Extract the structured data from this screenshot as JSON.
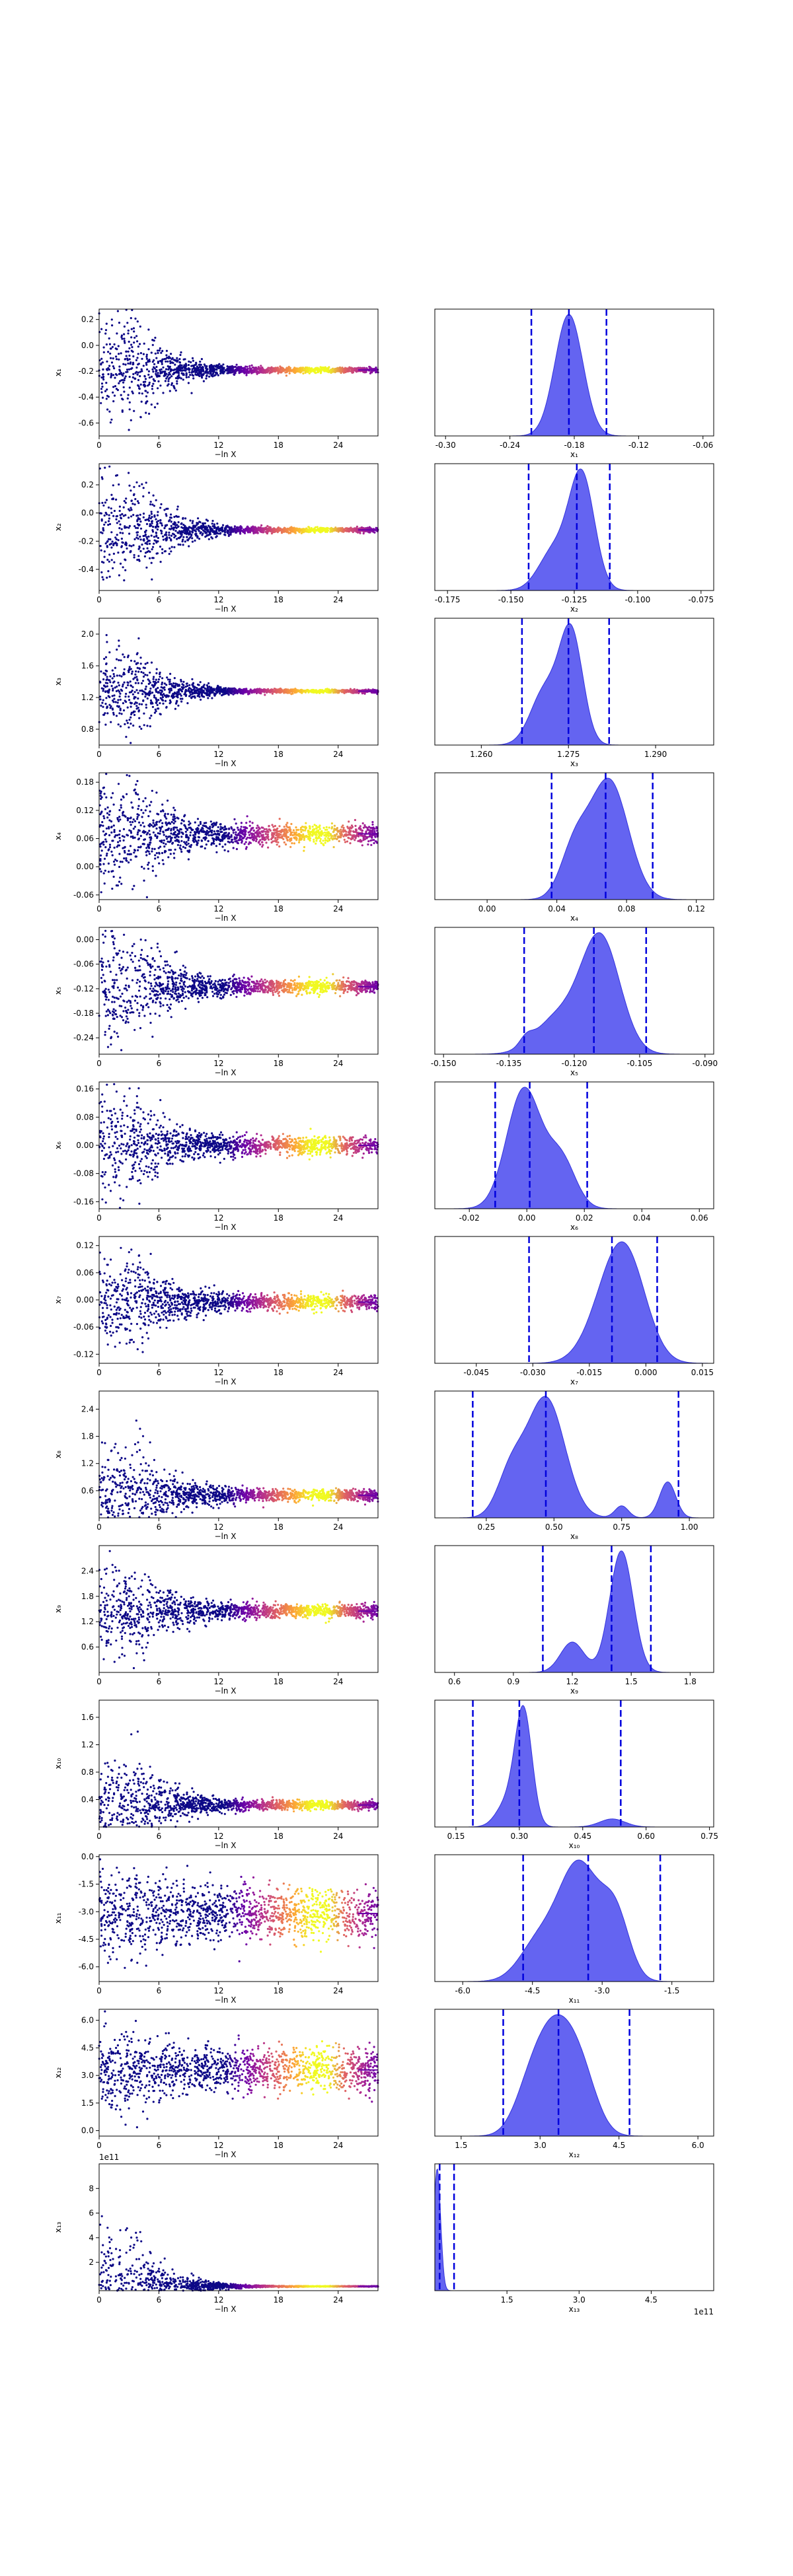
{
  "chart_data": [
    {
      "type": "scatter",
      "param": "x_1",
      "ylabel": "x₁",
      "xlabel": "−ln X",
      "xlim": [
        0,
        28
      ],
      "xticks": [
        "0",
        "6",
        "12",
        "18",
        "24"
      ],
      "ylim": [
        -0.7,
        0.28
      ],
      "yticks": [
        "0.2",
        "0.0",
        "-0.2",
        "-0.4",
        "-0.6"
      ],
      "center": -0.19,
      "init_spread": 0.2,
      "final_spread": 0.01
    },
    {
      "type": "area",
      "param": "x_1",
      "xlabel": "x₁",
      "xlim": [
        -0.31,
        -0.05
      ],
      "xticks": [
        "-0.30",
        "-0.24",
        "-0.18",
        "-0.12",
        "-0.06"
      ],
      "bounds": [
        -0.22,
        -0.15
      ],
      "mean": -0.185,
      "peaks": [
        {
          "mu": -0.185,
          "sigma": 0.013,
          "amp": 1.0
        }
      ]
    },
    {
      "type": "scatter",
      "param": "x_2",
      "ylabel": "x₂",
      "xlabel": "−ln X",
      "xlim": [
        0,
        28
      ],
      "xticks": [
        "0",
        "6",
        "12",
        "18",
        "24"
      ],
      "ylim": [
        -0.55,
        0.35
      ],
      "yticks": [
        "0.2",
        "0.0",
        "-0.2",
        "-0.4"
      ],
      "center": -0.12,
      "init_spread": 0.2,
      "final_spread": 0.008
    },
    {
      "type": "area",
      "param": "x_2",
      "xlabel": "x₂",
      "xlim": [
        -0.18,
        -0.07
      ],
      "xticks": [
        "-0.175",
        "-0.150",
        "-0.125",
        "-0.100",
        "-0.075"
      ],
      "bounds": [
        -0.143,
        -0.111
      ],
      "mean": -0.124,
      "peaks": [
        {
          "mu": -0.122,
          "sigma": 0.005,
          "amp": 1.0
        },
        {
          "mu": -0.133,
          "sigma": 0.006,
          "amp": 0.35
        }
      ]
    },
    {
      "type": "scatter",
      "param": "x_3",
      "ylabel": "x₃",
      "xlabel": "−ln X",
      "xlim": [
        0,
        28
      ],
      "xticks": [
        "0",
        "6",
        "12",
        "18",
        "24"
      ],
      "ylim": [
        0.6,
        2.2
      ],
      "yticks": [
        "2.0",
        "1.6",
        "1.2",
        "0.8"
      ],
      "center": 1.28,
      "init_spread": 0.25,
      "final_spread": 0.01
    },
    {
      "type": "area",
      "param": "x_3",
      "xlabel": "x₃",
      "xlim": [
        1.252,
        1.3
      ],
      "xticks": [
        "1.260",
        "1.275",
        "1.290"
      ],
      "bounds": [
        1.267,
        1.282
      ],
      "mean": 1.275,
      "peaks": [
        {
          "mu": 1.2755,
          "sigma": 0.002,
          "amp": 1.0
        },
        {
          "mu": 1.271,
          "sigma": 0.0025,
          "amp": 0.5
        }
      ]
    },
    {
      "type": "scatter",
      "param": "x_4",
      "ylabel": "x₄",
      "xlabel": "−ln X",
      "xlim": [
        0,
        28
      ],
      "xticks": [
        "0",
        "6",
        "12",
        "18",
        "24"
      ],
      "ylim": [
        -0.07,
        0.2
      ],
      "yticks": [
        "0.18",
        "0.12",
        "0.06",
        "0.00",
        "-0.06"
      ],
      "center": 0.07,
      "init_spread": 0.06,
      "final_spread": 0.01
    },
    {
      "type": "area",
      "param": "x_4",
      "xlabel": "x₄",
      "xlim": [
        -0.03,
        0.13
      ],
      "xticks": [
        "0.00",
        "0.04",
        "0.08",
        "0.12"
      ],
      "bounds": [
        0.037,
        0.095
      ],
      "mean": 0.068,
      "peaks": [
        {
          "mu": 0.07,
          "sigma": 0.011,
          "amp": 1.0
        },
        {
          "mu": 0.05,
          "sigma": 0.008,
          "amp": 0.4
        }
      ]
    },
    {
      "type": "scatter",
      "param": "x_5",
      "ylabel": "x₅",
      "xlabel": "−ln X",
      "xlim": [
        0,
        28
      ],
      "xticks": [
        "0",
        "6",
        "12",
        "18",
        "24"
      ],
      "ylim": [
        -0.28,
        0.03
      ],
      "yticks": [
        "0.00",
        "-0.06",
        "-0.12",
        "-0.18",
        "-0.24"
      ],
      "center": -0.115,
      "init_spread": 0.07,
      "final_spread": 0.008
    },
    {
      "type": "area",
      "param": "x_5",
      "xlabel": "x₅",
      "xlim": [
        -0.152,
        -0.088
      ],
      "xticks": [
        "-0.150",
        "-0.135",
        "-0.120",
        "-0.105",
        "-0.090"
      ],
      "bounds": [
        -0.1315,
        -0.1035
      ],
      "mean": -0.1155,
      "peaks": [
        {
          "mu": -0.114,
          "sigma": 0.0045,
          "amp": 1.0
        },
        {
          "mu": -0.124,
          "sigma": 0.005,
          "amp": 0.3
        },
        {
          "mu": -0.131,
          "sigma": 0.0015,
          "amp": 0.07
        }
      ]
    },
    {
      "type": "scatter",
      "param": "x_6",
      "ylabel": "x₆",
      "xlabel": "−ln X",
      "xlim": [
        0,
        28
      ],
      "xticks": [
        "0",
        "6",
        "12",
        "18",
        "24"
      ],
      "ylim": [
        -0.18,
        0.18
      ],
      "yticks": [
        "0.16",
        "0.08",
        "0.00",
        "-0.08",
        "-0.16"
      ],
      "center": 0.0,
      "init_spread": 0.07,
      "final_spread": 0.012
    },
    {
      "type": "area",
      "param": "x_6",
      "xlabel": "x₆",
      "xlim": [
        -0.032,
        0.065
      ],
      "xticks": [
        "-0.02",
        "0.00",
        "0.02",
        "0.04",
        "0.06"
      ],
      "bounds": [
        -0.011,
        0.021
      ],
      "mean": 0.001,
      "peaks": [
        {
          "mu": -0.001,
          "sigma": 0.006,
          "amp": 1.0
        },
        {
          "mu": 0.012,
          "sigma": 0.005,
          "amp": 0.4
        }
      ]
    },
    {
      "type": "scatter",
      "param": "x_7",
      "ylabel": "x₇",
      "xlabel": "−ln X",
      "xlim": [
        0,
        28
      ],
      "xticks": [
        "0",
        "6",
        "12",
        "18",
        "24"
      ],
      "ylim": [
        -0.14,
        0.14
      ],
      "yticks": [
        "0.12",
        "0.06",
        "0.00",
        "-0.06",
        "-0.12"
      ],
      "center": -0.005,
      "init_spread": 0.05,
      "final_spread": 0.008
    },
    {
      "type": "area",
      "param": "x_7",
      "xlabel": "x₇",
      "xlim": [
        -0.056,
        0.018
      ],
      "xticks": [
        "-0.045",
        "-0.030",
        "-0.015",
        "0.000",
        "0.015"
      ],
      "bounds": [
        -0.031,
        0.003
      ],
      "mean": -0.009,
      "peaks": [
        {
          "mu": -0.008,
          "sigma": 0.006,
          "amp": 1.0
        },
        {
          "mu": -0.004,
          "sigma": 0.005,
          "amp": 0.5
        }
      ]
    },
    {
      "type": "scatter",
      "param": "x_8",
      "ylabel": "x₈",
      "xlabel": "−ln X",
      "xlim": [
        0,
        28
      ],
      "xticks": [
        "0",
        "6",
        "12",
        "18",
        "24"
      ],
      "ylim": [
        0.0,
        2.8
      ],
      "yticks": [
        "2.4",
        "1.8",
        "1.2",
        "0.6"
      ],
      "center": 0.5,
      "init_spread": 0.55,
      "final_spread": 0.06
    },
    {
      "type": "area",
      "param": "x_8",
      "xlabel": "x₈",
      "xlim": [
        0.06,
        1.09
      ],
      "xticks": [
        "0.25",
        "0.50",
        "0.75",
        "1.00"
      ],
      "bounds": [
        0.2,
        0.96
      ],
      "mean": 0.47,
      "peaks": [
        {
          "mu": 0.47,
          "sigma": 0.07,
          "amp": 1.0
        },
        {
          "mu": 0.34,
          "sigma": 0.05,
          "amp": 0.35
        },
        {
          "mu": 0.92,
          "sigma": 0.03,
          "amp": 0.3
        },
        {
          "mu": 0.75,
          "sigma": 0.025,
          "amp": 0.1
        }
      ]
    },
    {
      "type": "scatter",
      "param": "x_9",
      "ylabel": "x₉",
      "xlabel": "−ln X",
      "xlim": [
        0,
        28
      ],
      "xticks": [
        "0",
        "6",
        "12",
        "18",
        "24"
      ],
      "ylim": [
        0.0,
        3.0
      ],
      "yticks": [
        "2.4",
        "1.8",
        "1.2",
        "0.6"
      ],
      "center": 1.45,
      "init_spread": 0.55,
      "final_spread": 0.08
    },
    {
      "type": "area",
      "param": "x_9",
      "xlabel": "x₉",
      "xlim": [
        0.5,
        1.92
      ],
      "xticks": [
        "0.6",
        "0.9",
        "1.2",
        "1.5",
        "1.8"
      ],
      "bounds": [
        1.05,
        1.6
      ],
      "mean": 1.4,
      "peaks": [
        {
          "mu": 1.45,
          "sigma": 0.06,
          "amp": 1.0
        },
        {
          "mu": 1.2,
          "sigma": 0.06,
          "amp": 0.25
        }
      ]
    },
    {
      "type": "scatter",
      "param": "x_10",
      "ylabel": "x₁₀",
      "xlabel": "−ln X",
      "xlim": [
        0,
        28
      ],
      "xticks": [
        "0",
        "6",
        "12",
        "18",
        "24"
      ],
      "ylim": [
        0.0,
        1.85
      ],
      "yticks": [
        "1.6",
        "1.2",
        "0.8",
        "0.4"
      ],
      "center": 0.32,
      "init_spread": 0.35,
      "final_spread": 0.03
    },
    {
      "type": "area",
      "param": "x_10",
      "xlabel": "x₁₀",
      "xlim": [
        0.1,
        0.76
      ],
      "xticks": [
        "0.15",
        "0.30",
        "0.45",
        "0.60",
        "0.75"
      ],
      "bounds": [
        0.19,
        0.54
      ],
      "mean": 0.3,
      "peaks": [
        {
          "mu": 0.31,
          "sigma": 0.02,
          "amp": 1.0
        },
        {
          "mu": 0.27,
          "sigma": 0.025,
          "amp": 0.2
        },
        {
          "mu": 0.52,
          "sigma": 0.03,
          "amp": 0.07
        }
      ]
    },
    {
      "type": "scatter",
      "param": "x_11",
      "ylabel": "x₁₁",
      "xlabel": "−ln X",
      "xlim": [
        0,
        28
      ],
      "xticks": [
        "0",
        "6",
        "12",
        "18",
        "24"
      ],
      "ylim": [
        -6.8,
        0.1
      ],
      "yticks": [
        "0.0",
        "-1.5",
        "-3.0",
        "-4.5",
        "-6.0"
      ],
      "center": -3.1,
      "init_spread": 1.2,
      "final_spread": 0.7
    },
    {
      "type": "area",
      "param": "x_11",
      "xlabel": "x₁₁",
      "xlim": [
        -6.6,
        -0.6
      ],
      "xticks": [
        "-6.0",
        "-4.5",
        "-3.0",
        "-1.5"
      ],
      "bounds": [
        -4.7,
        -1.75
      ],
      "mean": -3.3,
      "peaks": [
        {
          "mu": -3.5,
          "sigma": 0.45,
          "amp": 1.0
        },
        {
          "mu": -2.7,
          "sigma": 0.3,
          "amp": 0.5
        },
        {
          "mu": -4.4,
          "sigma": 0.4,
          "amp": 0.3
        }
      ]
    },
    {
      "type": "scatter",
      "param": "x_12",
      "ylabel": "x₁₂",
      "xlabel": "−ln X",
      "xlim": [
        0,
        28
      ],
      "xticks": [
        "0",
        "6",
        "12",
        "18",
        "24"
      ],
      "ylim": [
        -0.3,
        6.6
      ],
      "yticks": [
        "6.0",
        "4.5",
        "3.0",
        "1.5",
        "0.0"
      ],
      "center": 3.3,
      "init_spread": 1.0,
      "final_spread": 0.6
    },
    {
      "type": "area",
      "param": "x_12",
      "xlabel": "x₁₂",
      "xlim": [
        1.0,
        6.3
      ],
      "xticks": [
        "1.5",
        "3.0",
        "4.5",
        "6.0"
      ],
      "bounds": [
        2.3,
        4.7
      ],
      "mean": 3.35,
      "peaks": [
        {
          "mu": 3.3,
          "sigma": 0.35,
          "amp": 1.0
        },
        {
          "mu": 3.8,
          "sigma": 0.3,
          "amp": 0.5
        },
        {
          "mu": 2.8,
          "sigma": 0.3,
          "amp": 0.4
        }
      ]
    },
    {
      "type": "scatter",
      "param": "x_13",
      "ylabel": "x₁₃",
      "xlabel": "−ln X",
      "xlim": [
        0,
        28
      ],
      "xticks": [
        "0",
        "6",
        "12",
        "18",
        "24"
      ],
      "ylim": [
        -0.3,
        10.0
      ],
      "yticks": [
        "8",
        "6",
        "4",
        "2"
      ],
      "yoffset": "1e11",
      "center": 0.05,
      "init_spread": 2.0,
      "final_spread": 0.01
    },
    {
      "type": "area",
      "param": "x_13",
      "xlabel": "x₁₃",
      "xlim": [
        0,
        5.8
      ],
      "xticks": [
        "1.5",
        "3.0",
        "4.5"
      ],
      "xoffset": "1e11",
      "bounds": [
        0.1,
        0.4
      ],
      "mean": 0.1,
      "peaks": [
        {
          "mu": 0.05,
          "sigma": 0.07,
          "amp": 1.0
        }
      ]
    }
  ],
  "colors": {
    "scatter_early": "#0d0887",
    "scatter_mid": "#cc4778",
    "scatter_late": "#f0f921",
    "kde_fill": "#5353f0",
    "kde_edge": "#3333dd",
    "bounds_line": "#0000dd",
    "axis": "#000000"
  }
}
